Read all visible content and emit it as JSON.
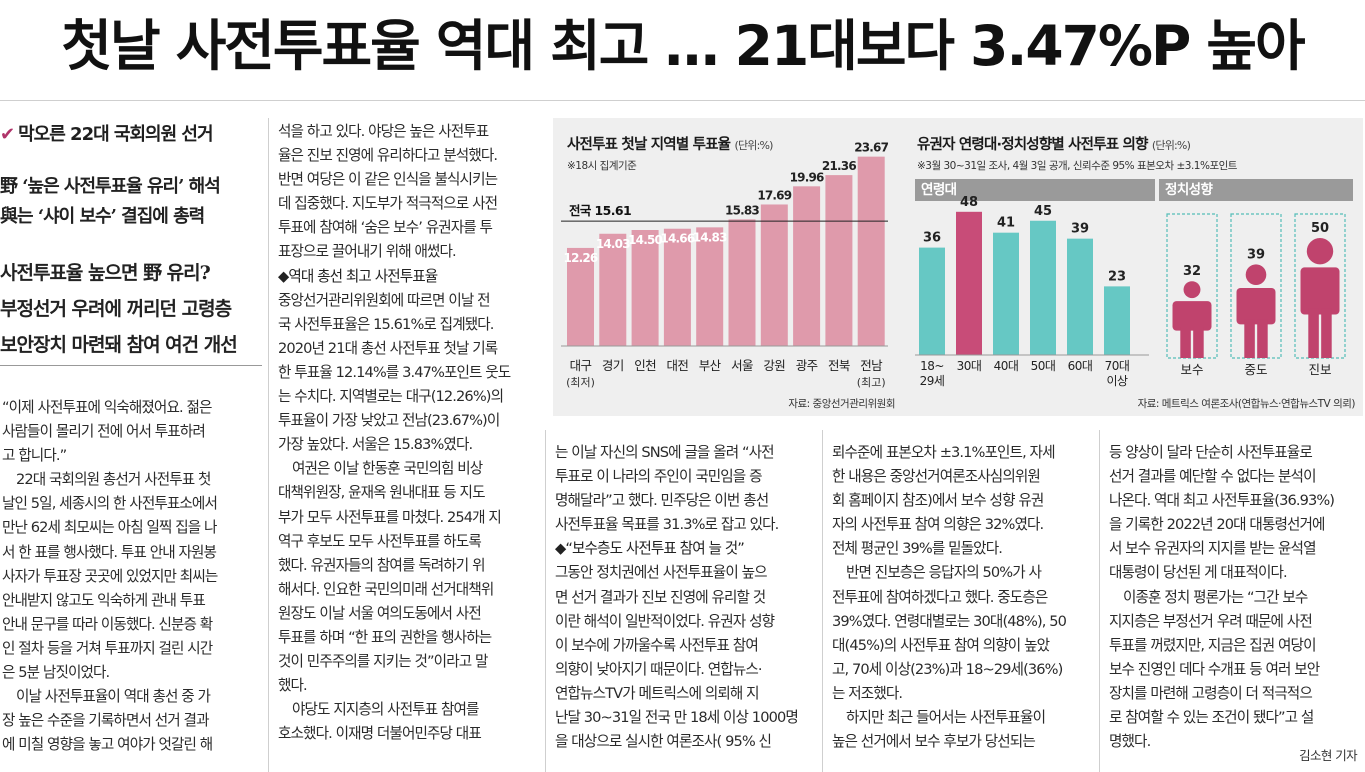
{
  "headline": "첫날 사전투표율 역대 최고 … 21대보다 3.47%P 높아",
  "kicker": "막오른 22대 국회의원 선거",
  "subhead1": [
    "野 ‘높은 사전투표율 유리’ 해석",
    "與는 ‘샤이 보수’ 결집에 총력"
  ],
  "subhead2": [
    "사전투표율 높으면 野 유리?",
    "부정선거 우려에 꺼리던 고령층",
    "보안장치 마련돼 참여 여건 개선"
  ],
  "col1": [
    "“이제 사전투표에 익숙해졌어요. 젊은",
    "사람들이 몰리기 전에 어서 투표하려",
    "고 합니다.”",
    "22대 국회의원 총선거 사전투표 첫",
    "날인 5일, 세종시의 한 사전투표소에서",
    "만난 62세 최모씨는 아침 일찍 집을 나",
    "서 한 표를 행사했다. 투표 안내 자원봉",
    "사자가 투표장 곳곳에 있었지만 최씨는",
    "안내받지 않고도 익숙하게 관내 투표",
    "안내 문구를 따라 이동했다. 신분증 확",
    "인 절차 등을 거쳐 투표까지 걸린 시간",
    "은 5분 남짓이었다.",
    "이날 사전투표율이 역대 총선 중 가",
    "장 높은 수준을 기록하면서 선거 결과",
    "에 미칠 영향을 놓고 여야가 엇갈린 해"
  ],
  "col2": [
    "석을 하고 있다. 야당은 높은 사전투표",
    "율은 진보 진영에 유리하다고 분석했다.",
    "반면 여당은 이 같은 인식을 불식시키는",
    "데 집중했다. 지도부가 적극적으로 사전",
    "투표에 참여해 ‘숨은 보수’ 유권자를 투",
    "표장으로 끌어내기 위해 애썼다.",
    "◆역대 총선 최고 사전투표율",
    "중앙선거관리위원회에 따르면 이날 전",
    "국 사전투표율은 15.61%로 집계됐다.",
    "2020년 21대 총선 사전투표 첫날 기록",
    "한 투표율 12.14%를 3.47%포인트 웃도",
    "는 수치다. 지역별로는 대구(12.26%)의",
    "투표율이 가장 낮았고 전남(23.67%)이",
    "가장 높았다. 서울은 15.83%였다.",
    "여권은 이날 한동훈 국민의힘 비상",
    "대책위원장, 윤재옥 원내대표 등 지도",
    "부가 모두 사전투표를 마쳤다. 254개 지",
    "역구 후보도 모두 사전투표를 하도록",
    "했다. 유권자들의 참여를 독려하기 위",
    "해서다. 인요한 국민의미래 선거대책위",
    "원장도 이날 서울 여의도동에서 사전",
    "투표를 하며 “한 표의 권한을 행사하는",
    "것이 민주주의를 지키는 것”이라고 말",
    "했다.",
    "야당도 지지층의 사전투표 참여를",
    "호소했다. 이재명 더불어민주당 대표"
  ],
  "col3": [
    "는 이날 자신의 SNS에 글을 올려 “사전",
    "투표로 이 나라의 주인이 국민임을 증",
    "명해달라”고 했다. 민주당은 이번 총선",
    "사전투표율 목표를 31.3%로 잡고 있다.",
    "◆“보수층도 사전투표 참여 늘 것”",
    "그동안 정치권에선 사전투표율이 높으",
    "면 선거 결과가 진보 진영에 유리할 것",
    "이란 해석이 일반적이었다. 유권자 성향",
    "이 보수에 가까울수록 사전투표 참여",
    "의향이 낮아지기 때문이다. 연합뉴스·",
    "연합뉴스TV가 메트릭스에 의뢰해 지",
    "난달 30~31일 전국 만 18세 이상 1000명",
    "을 대상으로 실시한 여론조사( 95% 신"
  ],
  "col4": [
    "뢰수준에 표본오차 ±3.1%포인트, 자세",
    "한 내용은 중앙선거여론조사심의위원",
    "회 홈페이지 참조)에서 보수 성향 유권",
    "자의 사전투표 참여 의향은 32%였다.",
    "전체 평균인 39%를 밑돌았다.",
    "반면 진보층은 응답자의 50%가 사",
    "전투표에 참여하겠다고 했다. 중도층은",
    "39%였다. 연령대별로는 30대(48%), 50",
    "대(45%)의 사전투표 참여 의향이 높았",
    "고, 70세 이상(23%)과 18~29세(36%)",
    "는 저조했다.",
    "하지만 최근 들어서는 사전투표율이",
    "높은 선거에서 보수 후보가 당선되는"
  ],
  "col5": [
    "등 양상이 달라 단순히 사전투표율로",
    "선거 결과를 예단할 수 없다는 분석이",
    "나온다. 역대 최고 사전투표율(36.93%)",
    "을 기록한 2022년 20대 대통령선거에",
    "서 보수 유권자의 지지를 받는 윤석열",
    "대통령이 당선된 게 대표적이다.",
    "이종훈 정치 평론가는 “그간 보수",
    "지지층은 부정선거 우려 때문에 사전",
    "투표를 꺼렸지만, 지금은 집권 여당이",
    "보수 진영인 데다 수개표 등 여러 보안",
    "장치를 마련해 고령층이 더 적극적으",
    "로 참여할 수 있는 조건이 됐다”고 설",
    "명했다."
  ],
  "byline": "김소현 기자",
  "chart_data": [
    {
      "type": "bar",
      "title": "사전투표 첫날 지역별 투표율",
      "unit": "(단위:%)",
      "note": "※18시 집계기준",
      "source": "자료: 중앙선거관리위원회",
      "reference_line": {
        "label": "전국 15.61",
        "value": 15.61
      },
      "categories": [
        "대구",
        "경기",
        "인천",
        "대전",
        "부산",
        "서울",
        "강원",
        "광주",
        "전북",
        "전남"
      ],
      "category_notes": [
        "(최저)",
        "",
        "",
        "",
        "",
        "",
        "",
        "",
        "",
        "(최고)"
      ],
      "values": [
        12.26,
        14.03,
        14.5,
        14.66,
        14.83,
        15.83,
        17.69,
        19.96,
        21.36,
        23.67
      ],
      "value_labels": [
        "12.26",
        "14.03",
        "14.50",
        "14.66",
        "14.83",
        "15.83",
        "17.69",
        "19.96",
        "21.36",
        "23.67"
      ],
      "ylim": [
        0,
        25
      ],
      "colors": {
        "bar": "#df9aab",
        "line": "#222222"
      }
    },
    {
      "type": "bar",
      "title": "유권자 연령대·정치성향별 사전투표 의향",
      "unit": "(단위:%)",
      "note": "※3월 30~31일 조사, 4월 3일 공개, 신뢰수준 95% 표본오차 ±3.1%포인트",
      "source": "자료: 메트릭스 여론조사(연합뉴스·연합뉴스TV 의뢰)",
      "groups": [
        {
          "label": "연령대",
          "categories": [
            "18~\n29세",
            "30대",
            "40대",
            "50대",
            "60대",
            "70대\n이상"
          ],
          "values": [
            36,
            48,
            41,
            45,
            39,
            23
          ],
          "highlight_index": 1
        },
        {
          "label": "정치성향",
          "categories": [
            "보수",
            "중도",
            "진보"
          ],
          "values": [
            32,
            39,
            50
          ]
        }
      ],
      "ylim": [
        0,
        60
      ],
      "colors": {
        "bar": "#66c8c4",
        "highlight": "#c84c78",
        "person": "#c0436d",
        "frame": "#55bdb8"
      }
    }
  ]
}
